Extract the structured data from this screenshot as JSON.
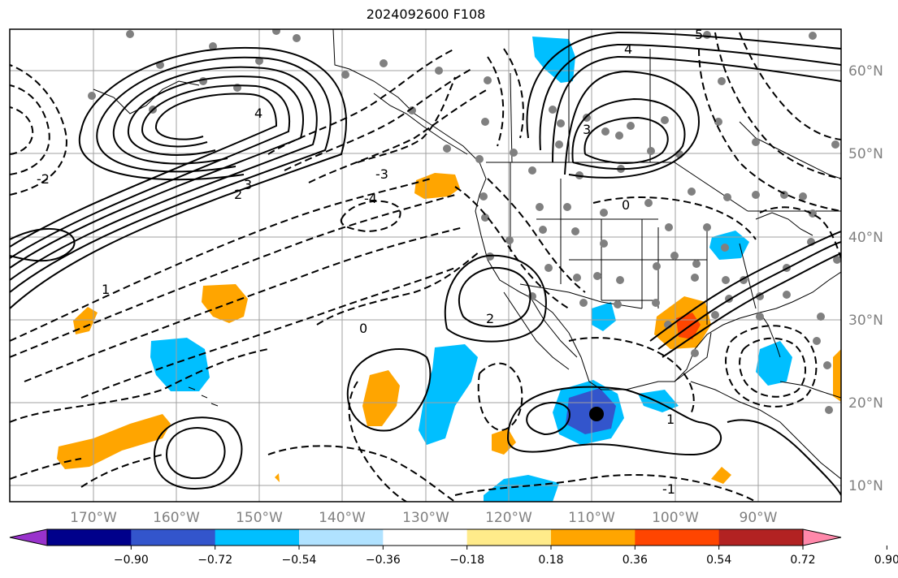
{
  "title": "2024092600 F108",
  "lat_labels": [
    "60°N",
    "50°N",
    "40°N",
    "30°N",
    "20°N",
    "10°N"
  ],
  "lon_labels": [
    "170°W",
    "160°W",
    "150°W",
    "140°W",
    "130°W",
    "120°W",
    "110°W",
    "100°W",
    "90°W"
  ],
  "colorbar": {
    "tick_labels": [
      "−0.90",
      "−0.72",
      "−0.54",
      "−0.36",
      "−0.18",
      "0.18",
      "0.36",
      "0.54",
      "0.72",
      "0.90"
    ],
    "colors": [
      "#9932cc",
      "#00008b",
      "#3355cc",
      "#00bfff",
      "#b0e2ff",
      "#ffffff",
      "#ffeb8a",
      "#ffa500",
      "#ff4500",
      "#b22222",
      "#ff88aa"
    ]
  },
  "contour_labels": [
    "5",
    "4",
    "4",
    "3",
    "3",
    "2",
    "2",
    "1",
    "1",
    "0",
    "0",
    "-3",
    "-4",
    "-2",
    "-1"
  ],
  "colors": {
    "positive_fill": "#ffa500",
    "negative_fill": "#00bfff",
    "strong_negative": "#3355cc",
    "strong_positive": "#ff4500",
    "station_dot": "#808080"
  }
}
